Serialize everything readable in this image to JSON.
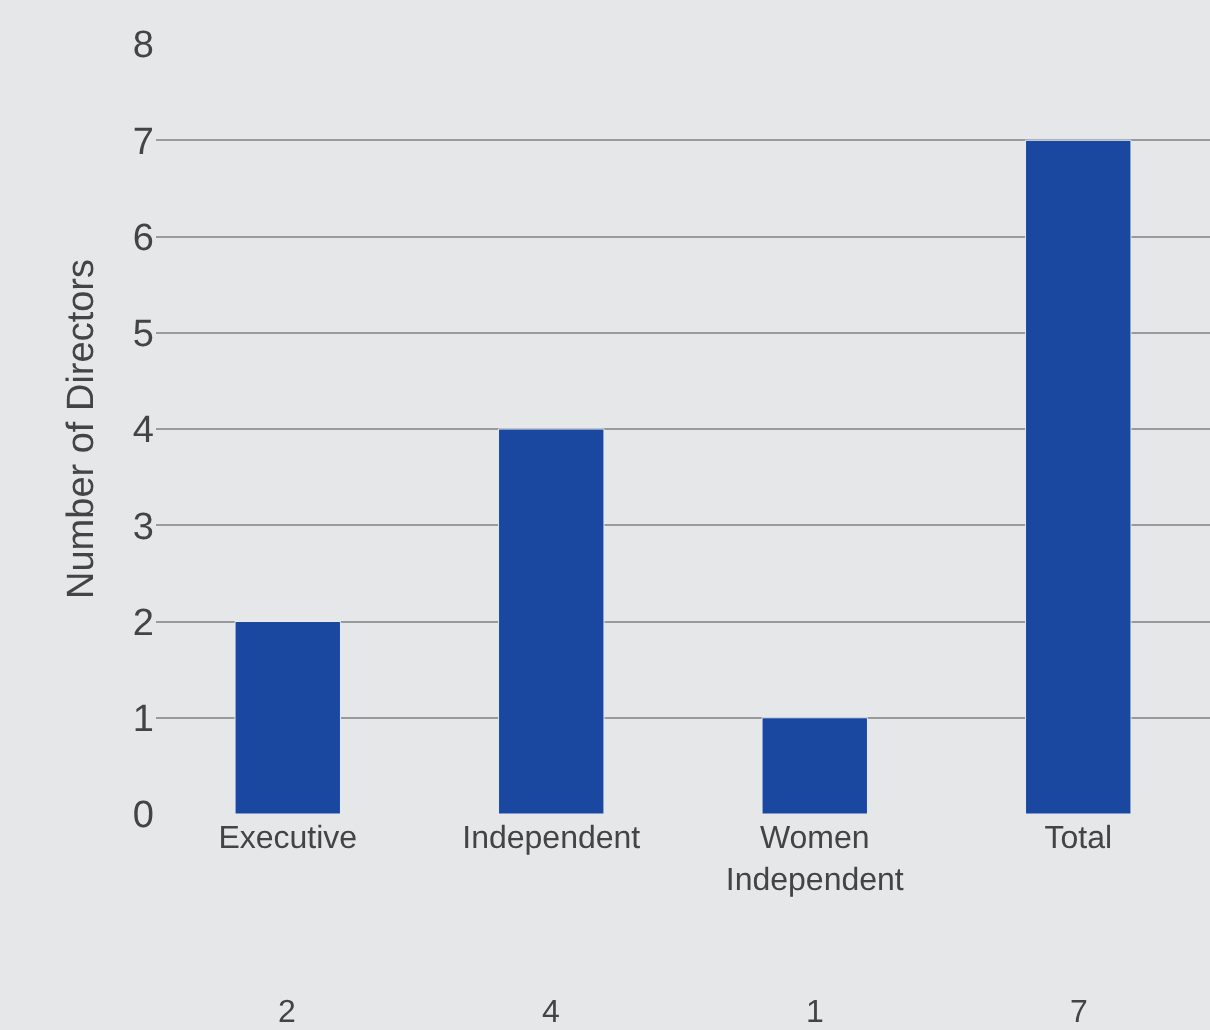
{
  "chart_data": {
    "type": "bar",
    "ylabel": "Number of Directors",
    "categories": [
      "Executive",
      "Independent",
      "Women Independent",
      "Total"
    ],
    "values": [
      2,
      4,
      1,
      7
    ],
    "color": "#1a47a0",
    "ylim": [
      0,
      8
    ],
    "yticks": [
      0,
      1,
      2,
      3,
      4,
      5,
      6,
      7,
      8
    ],
    "grid": "y",
    "data_labels": true
  }
}
